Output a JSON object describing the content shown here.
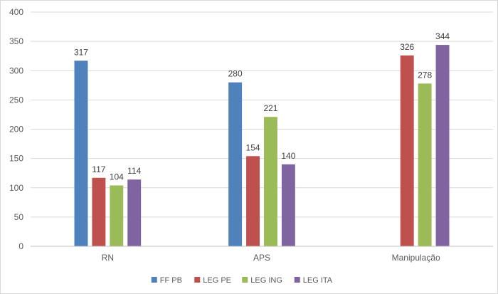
{
  "chart_data": {
    "type": "bar",
    "title": "",
    "xlabel": "",
    "ylabel": "",
    "categories": [
      "RN",
      "APS",
      "Manipulação"
    ],
    "series": [
      {
        "name": "FF PB",
        "color": "#4f81bd",
        "values": [
          317,
          280,
          null
        ]
      },
      {
        "name": "LEG PE",
        "color": "#c0504d",
        "values": [
          117,
          154,
          326
        ]
      },
      {
        "name": "LEG ING",
        "color": "#9bbb59",
        "values": [
          104,
          221,
          278
        ]
      },
      {
        "name": "LEG ITA",
        "color": "#8064a2",
        "values": [
          114,
          140,
          344
        ]
      }
    ],
    "ylim": [
      0,
      400
    ],
    "yticks": [
      0,
      50,
      100,
      150,
      200,
      250,
      300,
      350,
      400
    ],
    "grid": true,
    "legend_position": "bottom"
  }
}
